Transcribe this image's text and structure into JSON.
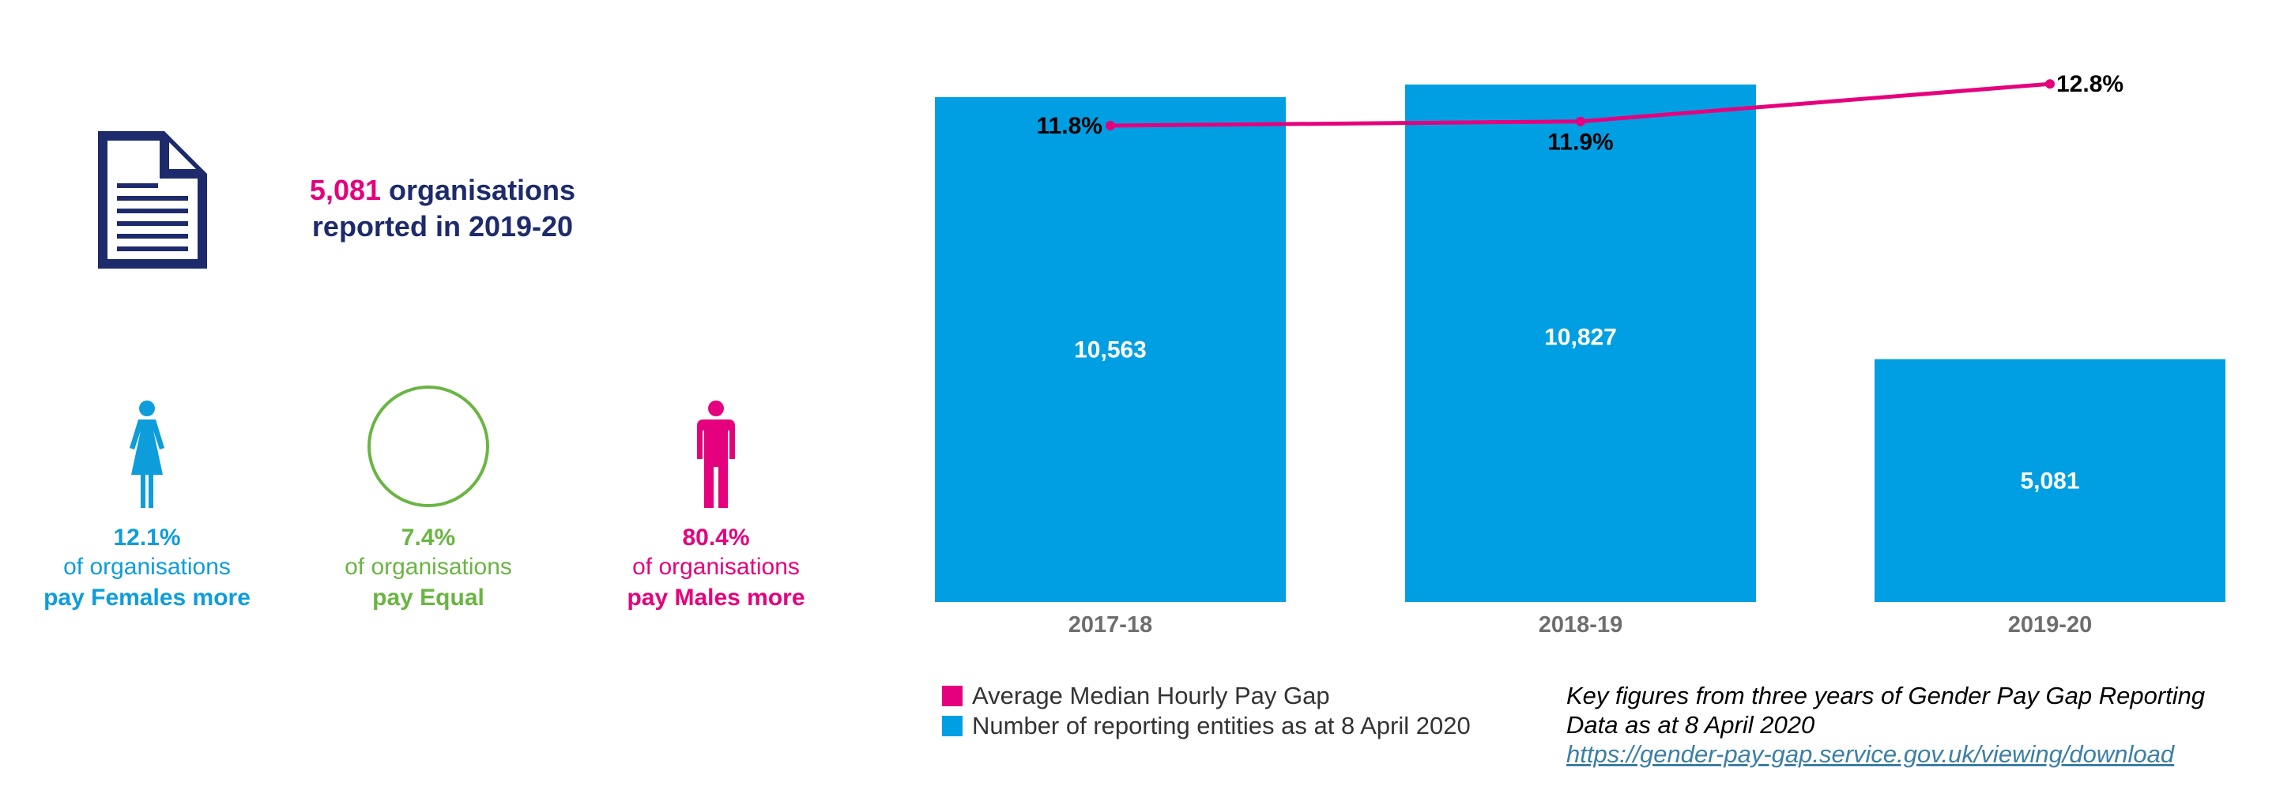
{
  "headline": {
    "count": "5,081",
    "line1_rest": " organisations",
    "line2": "reported in 2019-20"
  },
  "stats": {
    "female": {
      "pct": "12.1%",
      "of": "of organisations",
      "pays": "pay Females more",
      "icon": "female-figure-icon"
    },
    "equal": {
      "pct": "7.4%",
      "of": "of organisations",
      "pays": "pay Equal",
      "icon": "circle-icon"
    },
    "male": {
      "pct": "80.4%",
      "of": "of organisations",
      "pays": "pay Males more",
      "icon": "male-figure-icon"
    }
  },
  "colors": {
    "navy": "#1d2a6b",
    "pink": "#e5007d",
    "blue": "#009fe3",
    "green": "#6ab542",
    "grey": "#6e6e6e"
  },
  "chart_data": {
    "type": "bar",
    "categories": [
      "2017-18",
      "2018-19",
      "2019-20"
    ],
    "series": [
      {
        "name": "Number of reporting entities as at 8 April 2020",
        "type": "bar",
        "values": [
          10563,
          10827,
          5081
        ],
        "labels": [
          "10,563",
          "10,827",
          "5,081"
        ],
        "color": "#009fe3"
      },
      {
        "name": "Average Median Hourly Pay Gap",
        "type": "line",
        "values": [
          11.8,
          11.9,
          12.8
        ],
        "labels": [
          "11.8%",
          "11.9%",
          "12.8%"
        ],
        "color": "#e5007d"
      }
    ],
    "ylim_bars": [
      0,
      11000
    ],
    "ylim_line": [
      0,
      13.5
    ],
    "grid": false,
    "legend": "bottom-left"
  },
  "legend": {
    "items": [
      {
        "label": "Average Median Hourly Pay Gap",
        "color": "#e5007d"
      },
      {
        "label": "Number of reporting entities as at 8 April 2020",
        "color": "#009fe3"
      }
    ]
  },
  "note": {
    "line1": "Key figures from three years of Gender Pay Gap Reporting",
    "line2": "Data as at 8 April 2020",
    "link": "https://gender-pay-gap.service.gov.uk/viewing/download"
  }
}
